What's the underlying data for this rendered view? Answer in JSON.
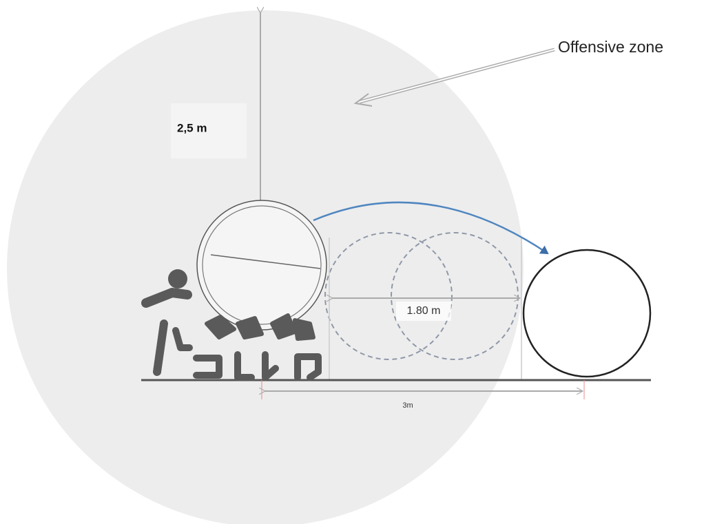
{
  "annotations": {
    "zone": "Offensive zone",
    "height": "2,5 m",
    "gap": "1.80 m",
    "distance": "3m"
  }
}
